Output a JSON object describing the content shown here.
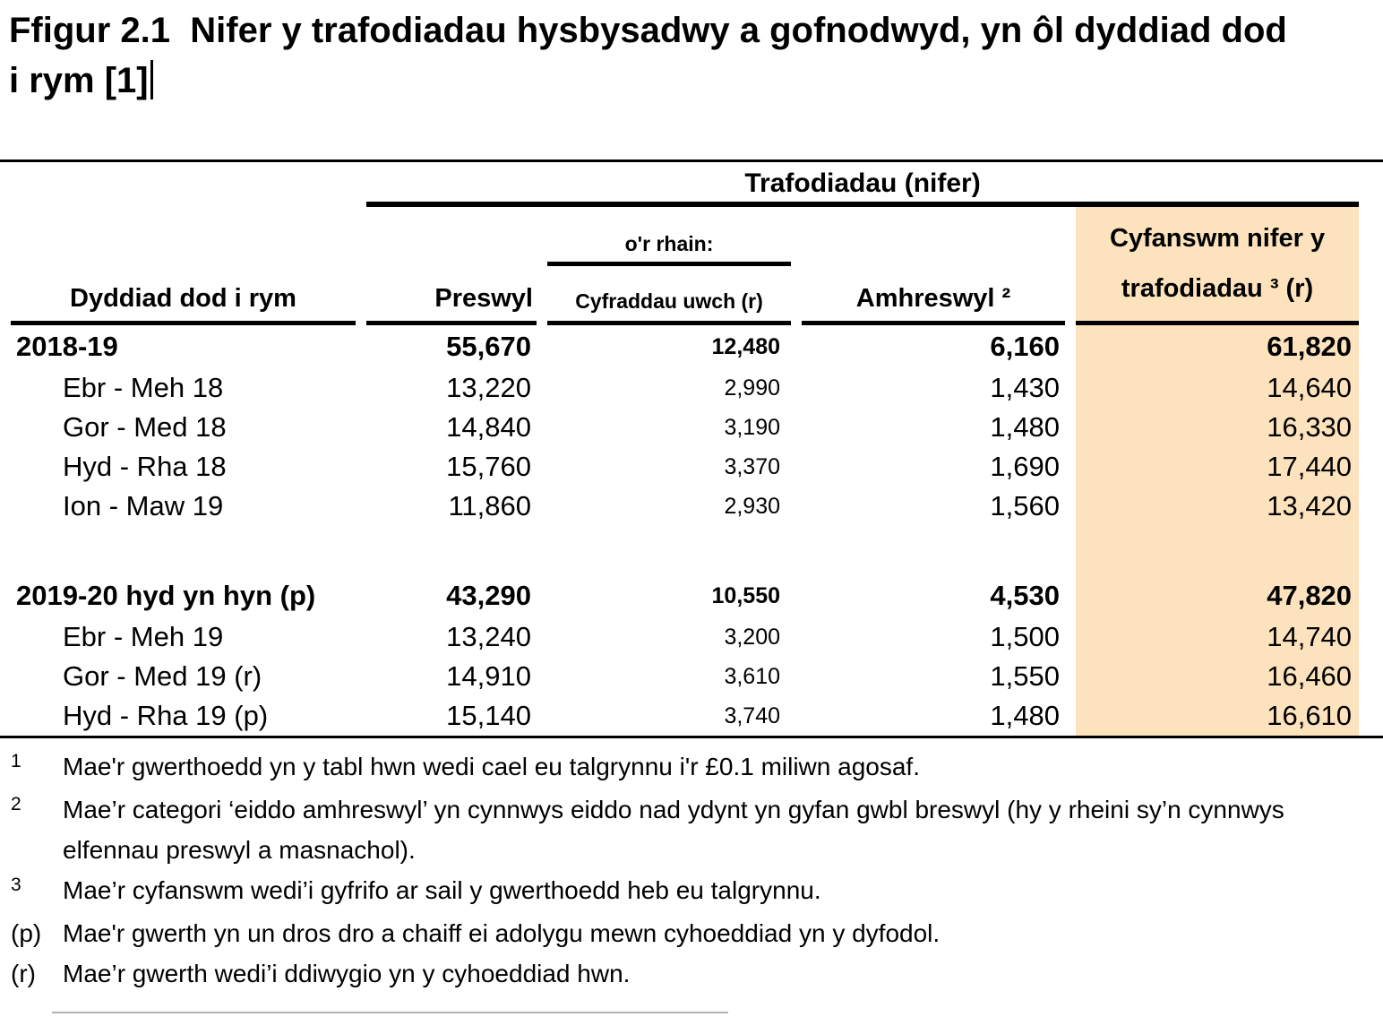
{
  "title": "Ffigur 2.1  Nifer y trafodiadau hysbysadwy a gofnodwyd, yn ôl dyddiad dod i rym [1]",
  "table": {
    "group_header": "Trafodiadau (nifer)",
    "subgroup_header": "o'r rhain:",
    "highlight_color": "#fce2bd",
    "columns": {
      "date": "Dyddiad dod i rym",
      "residential": "Preswyl",
      "higher_rates": "Cyfraddau uwch (r)",
      "non_residential": "Amhreswyl ²",
      "total_line1": "Cyfanswm nifer y",
      "total_line2": "trafodiadau ³ (r)"
    },
    "rows": [
      {
        "label": "2018-19",
        "values": [
          "55,670",
          "12,480",
          "6,160",
          "61,820"
        ]
      },
      {
        "label": "Ebr - Meh 18",
        "values": [
          "13,220",
          "2,990",
          "1,430",
          "14,640"
        ]
      },
      {
        "label": "Gor - Med 18",
        "values": [
          "14,840",
          "3,190",
          "1,480",
          "16,330"
        ]
      },
      {
        "label": "Hyd - Rha 18",
        "values": [
          "15,760",
          "3,370",
          "1,690",
          "17,440"
        ]
      },
      {
        "label": "Ion - Maw 19",
        "values": [
          "11,860",
          "2,930",
          "1,560",
          "13,420"
        ]
      },
      {
        "label": "2019-20 hyd yn hyn (p)",
        "values": [
          "43,290",
          "10,550",
          "4,530",
          "47,820"
        ]
      },
      {
        "label": "Ebr - Meh 19",
        "values": [
          "13,240",
          "3,200",
          "1,500",
          "14,740"
        ]
      },
      {
        "label": "Gor - Med 19 (r)",
        "values": [
          "14,910",
          "3,610",
          "1,550",
          "16,460"
        ]
      },
      {
        "label": "Hyd - Rha 19 (p)",
        "values": [
          "15,140",
          "3,740",
          "1,480",
          "16,610"
        ]
      }
    ]
  },
  "footnotes": [
    {
      "marker": "1",
      "text": "Mae'r gwerthoedd yn y tabl hwn wedi cael eu talgrynnu i'r £0.1 miliwn agosaf."
    },
    {
      "marker": "2",
      "text": "Mae’r categori ‘eiddo amhreswyl’ yn cynnwys eiddo nad ydynt yn gyfan gwbl breswyl (hy y rheini sy’n cynnwys elfennau preswyl a masnachol)."
    },
    {
      "marker": "3",
      "text": "Mae’r cyfanswm wedi’i gyfrifo ar sail y gwerthoedd heb eu talgrynnu."
    },
    {
      "marker": "(p)",
      "text": "Mae'r gwerth yn un dros dro a chaiff ei adolygu mewn cyhoeddiad yn y dyfodol."
    },
    {
      "marker": "(r)",
      "text": "Mae’r gwerth wedi’i ddiwygio yn y cyhoeddiad hwn."
    }
  ]
}
